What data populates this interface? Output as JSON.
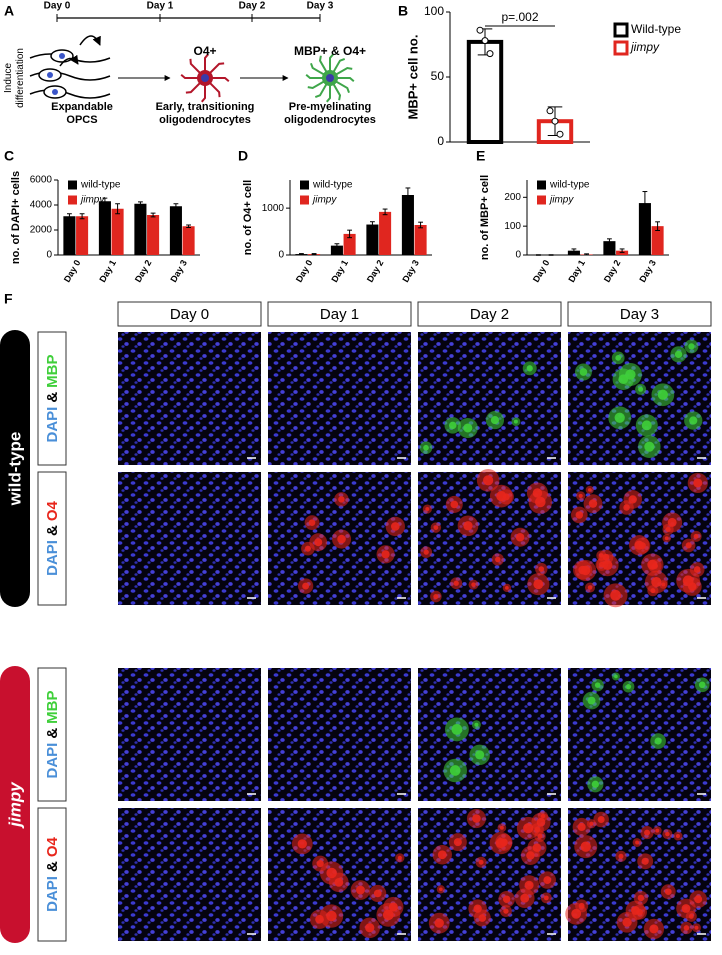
{
  "panel_labels": [
    "A",
    "B",
    "C",
    "D",
    "E",
    "F"
  ],
  "diagram": {
    "timeline": [
      "Day 0",
      "Day 1",
      "Day 2",
      "Day 3"
    ],
    "side_label": [
      "Induce",
      "differentiation"
    ],
    "stages": [
      {
        "lines": [
          "Expandable",
          "OPCS"
        ]
      },
      {
        "title": "O4+",
        "lines": [
          "Early, transitioning",
          "oligodendrocytes"
        ]
      },
      {
        "title": "MBP+ & O4+",
        "lines": [
          "Pre-myelinating",
          "oligodendrocytes"
        ]
      }
    ]
  },
  "chart_data": [
    {
      "type": "bar",
      "ylabel": "MBP+ cell no.",
      "ylim": [
        0,
        100
      ],
      "yticks": [
        0,
        50,
        100
      ],
      "outline": true,
      "annotation": "p=.002",
      "legend": "right",
      "series": [
        {
          "name": "Wild-type",
          "color": "#000000",
          "values": [
            77
          ],
          "errors": [
            10
          ],
          "points": [
            [
              86,
              78,
              68
            ]
          ]
        },
        {
          "name": "jimpy",
          "color": "#e0261f",
          "values": [
            16
          ],
          "errors": [
            11
          ],
          "points": [
            [
              24,
              16,
              6
            ]
          ]
        }
      ]
    },
    {
      "type": "bar",
      "ylabel": "no. of DAPI+ cells",
      "ylim": [
        0,
        6000
      ],
      "yticks": [
        0,
        2000,
        4000,
        6000
      ],
      "categories": [
        "Day 0",
        "Day 1",
        "Day 2",
        "Day 3"
      ],
      "legend": "upper left",
      "series": [
        {
          "name": "wild-type",
          "color": "#000000",
          "values": [
            3100,
            4300,
            4100,
            3900
          ],
          "errors": [
            200,
            250,
            150,
            200
          ]
        },
        {
          "name": "jimpy",
          "color": "#e0261f",
          "values": [
            3100,
            3700,
            3200,
            2300
          ],
          "errors": [
            200,
            400,
            150,
            100
          ]
        }
      ]
    },
    {
      "type": "bar",
      "ylabel": "no. of O4+ cell",
      "ylim": [
        0,
        1600
      ],
      "yticks": [
        0,
        1000
      ],
      "categories": [
        "Day 0",
        "Day 1",
        "Day 2",
        "Day 3"
      ],
      "legend": "upper left",
      "series": [
        {
          "name": "wild-type",
          "color": "#000000",
          "values": [
            20,
            200,
            650,
            1280
          ],
          "errors": [
            10,
            40,
            60,
            150
          ]
        },
        {
          "name": "jimpy",
          "color": "#e0261f",
          "values": [
            20,
            450,
            920,
            640
          ],
          "errors": [
            10,
            80,
            60,
            60
          ]
        }
      ]
    },
    {
      "type": "bar",
      "ylabel": "no. of MBP+ cell",
      "ylim": [
        0,
        260
      ],
      "yticks": [
        0,
        100,
        200
      ],
      "categories": [
        "Day 0",
        "Day 1",
        "Day 2",
        "Day 3"
      ],
      "legend": "upper left",
      "series": [
        {
          "name": "wild-type",
          "color": "#000000",
          "values": [
            0,
            15,
            48,
            180
          ],
          "errors": [
            1,
            6,
            8,
            40
          ]
        },
        {
          "name": "jimpy",
          "color": "#e0261f",
          "values": [
            0,
            2,
            15,
            100
          ],
          "errors": [
            1,
            2,
            6,
            15
          ]
        }
      ]
    }
  ],
  "micrographs": {
    "columns": [
      "Day 0",
      "Day 1",
      "Day 2",
      "Day 3"
    ],
    "groups": [
      {
        "label": "wild-type",
        "rows": [
          [
            "DAPI",
            "&",
            "MBP"
          ],
          [
            "DAPI",
            "&",
            "O4"
          ]
        ]
      },
      {
        "label": "jimpy",
        "rows": [
          [
            "DAPI",
            "&",
            "MBP"
          ],
          [
            "DAPI",
            "&",
            "O4"
          ]
        ]
      }
    ]
  }
}
